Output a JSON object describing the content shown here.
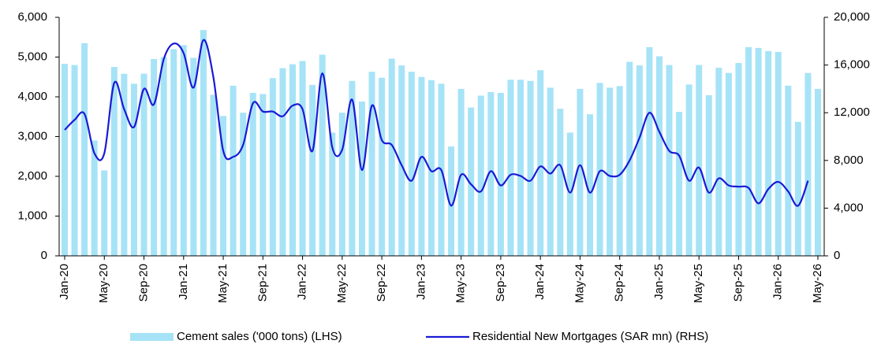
{
  "chart_data": {
    "type": "bar-line",
    "categories": [
      "Jan-20",
      null,
      null,
      null,
      "May-20",
      null,
      null,
      null,
      "Sep-20",
      null,
      null,
      null,
      "Jan-21",
      null,
      null,
      null,
      "May-21",
      null,
      null,
      null,
      "Sep-21",
      null,
      null,
      null,
      "Jan-22",
      null,
      null,
      null,
      "May-22",
      null,
      null,
      null,
      "Sep-22",
      null,
      null,
      null,
      "Jan-23",
      null,
      null,
      null,
      "May-23",
      null,
      null,
      null,
      "Sep-23",
      null,
      null,
      null,
      "Jan-24",
      null,
      null,
      null,
      "May-24",
      null,
      null,
      null,
      "Sep-24",
      null,
      null,
      null,
      "Jan-25",
      null,
      null,
      null,
      "May-25",
      null,
      null,
      null,
      "Sep-25",
      null,
      null,
      null,
      "Jan-26",
      null,
      null,
      null,
      "May-26"
    ],
    "series": [
      {
        "name": "Cement sales ('000 tons) (LHS)",
        "color": "#a6e3f7",
        "type": "bar",
        "values": [
          4830,
          4800,
          5350,
          2900,
          2150,
          4750,
          4580,
          4330,
          4580,
          4950,
          5000,
          5200,
          5300,
          4980,
          5680,
          4050,
          3520,
          4280,
          3600,
          4100,
          4070,
          4470,
          4720,
          4820,
          4900,
          4300,
          5060,
          3100,
          3600,
          4400,
          3880,
          4630,
          4480,
          4960,
          4790,
          4630,
          4500,
          4420,
          4330,
          2750,
          4200,
          3730,
          4030,
          4120,
          4100,
          4430,
          4430,
          4400,
          4670,
          4230,
          3700,
          3100,
          4200,
          3560,
          4350,
          4230,
          4270,
          4880,
          4790,
          5250,
          5020,
          4800,
          3620,
          4310,
          4800,
          4040,
          4730,
          4600,
          4850,
          5250,
          5230,
          5150,
          5130,
          4280,
          3370,
          4600,
          4200
        ]
      },
      {
        "name": "Residential New Mortgages (SAR mn) (RHS)",
        "color": "#1a1ad6",
        "type": "line",
        "axis": "y2",
        "values": [
          10560,
          11400,
          11900,
          8600,
          8600,
          14500,
          12300,
          10800,
          14000,
          12700,
          16500,
          17800,
          17000,
          14100,
          18100,
          15000,
          8800,
          8300,
          9300,
          12800,
          12100,
          12100,
          11700,
          12600,
          12300,
          8800,
          15300,
          9100,
          8900,
          13100,
          7200,
          12600,
          9700,
          9300,
          7600,
          6300,
          8300,
          7100,
          7200,
          4200,
          6800,
          6000,
          5400,
          7100,
          5900,
          6800,
          6700,
          6300,
          7500,
          6900,
          7600,
          5300,
          7600,
          5300,
          7100,
          6700,
          6800,
          8000,
          9900,
          12000,
          10400,
          8800,
          8400,
          6300,
          7400,
          5300,
          6500,
          5900,
          5800,
          5700,
          4400,
          5600,
          6200,
          5400,
          4200,
          6300,
          null
        ]
      }
    ],
    "ylim": [
      0,
      6000
    ],
    "yticks": [
      0,
      {
        "value": 1000,
        "label": "1,000"
      },
      {
        "value": 2000,
        "label": "2,000"
      },
      {
        "value": 3000,
        "label": "3,000"
      },
      {
        "value": 4000,
        "label": "4,000"
      },
      {
        "value": 5000,
        "label": "5,000"
      },
      {
        "value": 6000,
        "label": "6,000"
      }
    ],
    "y2lim": [
      0,
      20000
    ],
    "y2ticks": [
      0,
      {
        "value": 4000,
        "label": "4,000"
      },
      {
        "value": 8000,
        "label": "8,000"
      },
      {
        "value": 12000,
        "label": "12,000"
      },
      {
        "value": 16000,
        "label": "16,000"
      },
      {
        "value": 20000,
        "label": "20,000"
      }
    ],
    "legend": "bottom"
  }
}
